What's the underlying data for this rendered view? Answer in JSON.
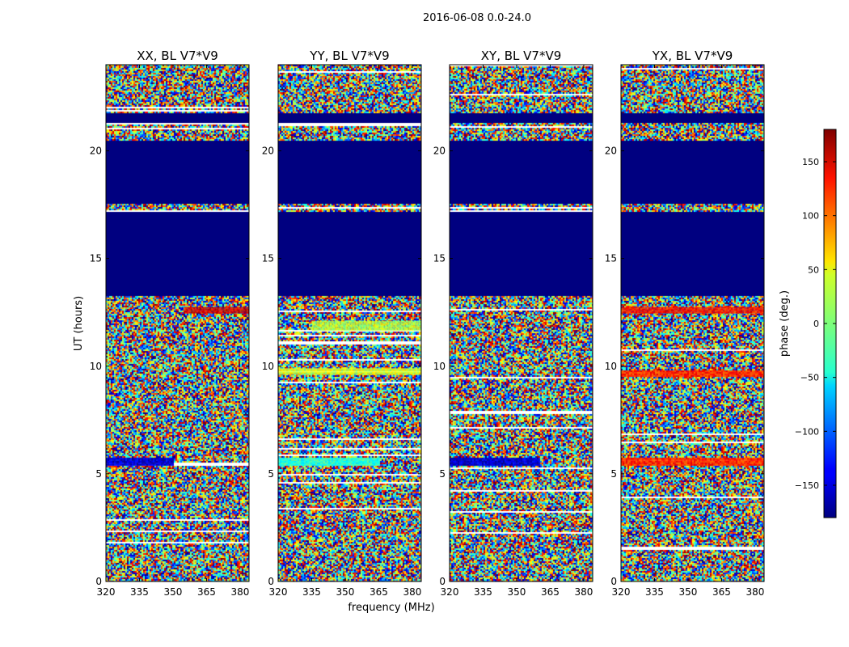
{
  "chart_data": {
    "type": "heatmap",
    "suptitle": "2016-06-08 0.0-24.0",
    "xlabel": "frequency (MHz)",
    "ylabel": "UT (hours)",
    "xlim": [
      320,
      384
    ],
    "ylim": [
      0,
      24
    ],
    "xticks": [
      320,
      335,
      350,
      365,
      380
    ],
    "yticks": [
      0,
      5,
      10,
      15,
      20
    ],
    "panels": [
      {
        "title": "XX, BL V7*V9",
        "key": "xx"
      },
      {
        "title": "YY, BL V7*V9",
        "key": "yy"
      },
      {
        "title": "XY, BL V7*V9",
        "key": "xy"
      },
      {
        "title": "YX, BL V7*V9",
        "key": "yx"
      }
    ],
    "colorbar": {
      "label": "phase (deg.)",
      "range": [
        -180,
        180
      ],
      "ticks": [
        -150,
        -100,
        -50,
        0,
        50,
        100,
        150
      ],
      "colormap": "jet"
    },
    "flagged_value": -180,
    "flagged_ut_ranges": [
      [
        13.3,
        17.2
      ],
      [
        17.6,
        20.5
      ],
      [
        21.3,
        21.8
      ]
    ],
    "coherent_bands": [
      {
        "panel": "xx",
        "ut": [
          5.4,
          5.75
        ],
        "freq": [
          320,
          350
        ],
        "phase": -150
      },
      {
        "panel": "xx",
        "ut": [
          12.5,
          12.75
        ],
        "freq": [
          355,
          384
        ],
        "phase": 150
      },
      {
        "panel": "yy",
        "ut": [
          5.4,
          5.75
        ],
        "freq": [
          320,
          365
        ],
        "phase": -30
      },
      {
        "panel": "yy",
        "ut": [
          11.7,
          12.1
        ],
        "freq": [
          335,
          384
        ],
        "phase": 20
      },
      {
        "panel": "yy",
        "ut": [
          9.6,
          9.9
        ],
        "freq": [
          320,
          384
        ],
        "phase": 30
      },
      {
        "panel": "xy",
        "ut": [
          5.4,
          5.75
        ],
        "freq": [
          320,
          360
        ],
        "phase": -150
      },
      {
        "panel": "yx",
        "ut": [
          5.4,
          5.75
        ],
        "freq": [
          320,
          384
        ],
        "phase": 120
      },
      {
        "panel": "yx",
        "ut": [
          12.5,
          12.75
        ],
        "freq": [
          320,
          384
        ],
        "phase": 130
      },
      {
        "panel": "yx",
        "ut": [
          9.5,
          9.8
        ],
        "freq": [
          320,
          384
        ],
        "phase": 120
      }
    ]
  }
}
